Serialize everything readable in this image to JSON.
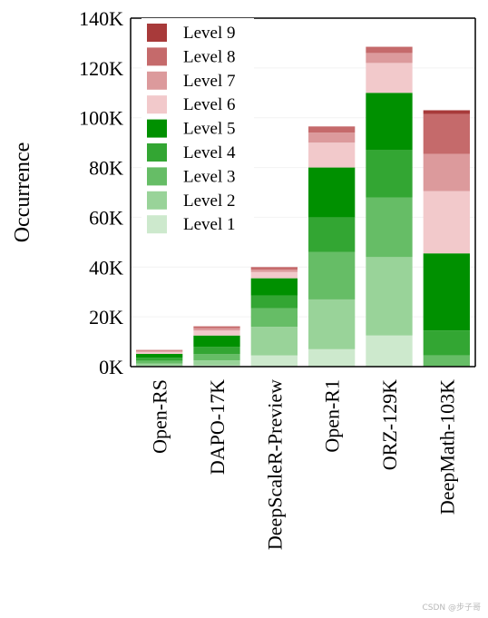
{
  "chart_data": {
    "type": "bar",
    "stacked": true,
    "categories": [
      "Open-RS",
      "DAPO-17K",
      "DeepScaleR-Preview",
      "Open-R1",
      "ORZ-129K",
      "DeepMath-103K"
    ],
    "ylabel": "Occurrence",
    "xlabel": "",
    "ylim": [
      0,
      140000
    ],
    "yticks": [
      0,
      20000,
      40000,
      60000,
      80000,
      100000,
      120000,
      140000
    ],
    "ytick_labels": [
      "0K",
      "20K",
      "40K",
      "60K",
      "80K",
      "100K",
      "120K",
      "140K"
    ],
    "grid": true,
    "legend_placement": "top-left",
    "series": [
      {
        "name": "Level 1",
        "color": "#cde9cd",
        "values": [
          300,
          500,
          4500,
          7000,
          12500,
          0
        ]
      },
      {
        "name": "Level 2",
        "color": "#99d399",
        "values": [
          900,
          2000,
          11500,
          20000,
          31500,
          0
        ]
      },
      {
        "name": "Level 3",
        "color": "#66bd66",
        "values": [
          1200,
          2500,
          7500,
          19000,
          24000,
          4500
        ]
      },
      {
        "name": "Level 4",
        "color": "#33a633",
        "values": [
          1200,
          3000,
          5000,
          14000,
          19000,
          10000
        ]
      },
      {
        "name": "Level 5",
        "color": "#009000",
        "values": [
          1500,
          4500,
          7000,
          20000,
          23000,
          31000
        ]
      },
      {
        "name": "Level 6",
        "color": "#f2c9cb",
        "values": [
          800,
          2000,
          2500,
          10000,
          12000,
          25000
        ]
      },
      {
        "name": "Level 7",
        "color": "#dc9a9c",
        "values": [
          500,
          1000,
          1000,
          4000,
          4000,
          15000
        ]
      },
      {
        "name": "Level 8",
        "color": "#c56a6b",
        "values": [
          300,
          700,
          1000,
          2500,
          2500,
          16000
        ]
      },
      {
        "name": "Level 9",
        "color": "#a83a3a",
        "values": [
          0,
          0,
          0,
          0,
          0,
          1500
        ]
      }
    ]
  },
  "watermark": "CSDN @步子哥"
}
